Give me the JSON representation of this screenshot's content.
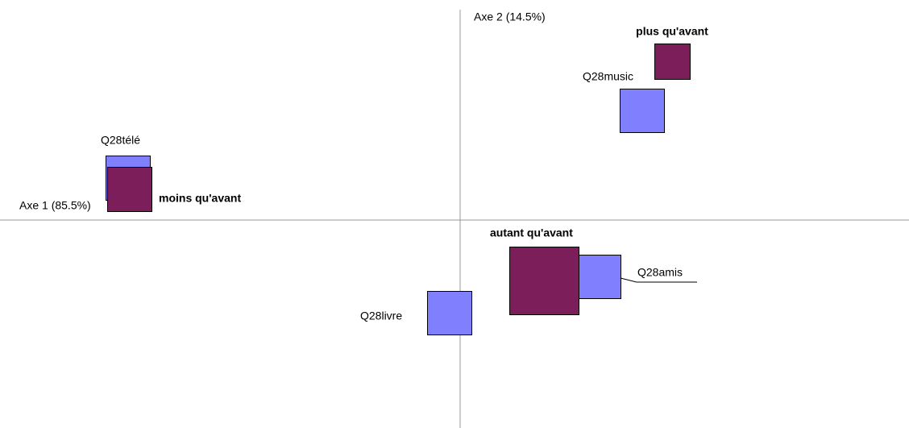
{
  "axes": {
    "x_label": "Axe 1 (85.5%)",
    "y_label": "Axe 2 (14.5%)"
  },
  "nodes": [
    {
      "label": "Q28music"
    },
    {
      "label": "plus qu'avant"
    },
    {
      "label": "Q28télé"
    },
    {
      "label": "moins qu'avant"
    },
    {
      "label": "autant qu'avant"
    },
    {
      "label": "Q28amis"
    },
    {
      "label": "Q28livre"
    }
  ]
}
